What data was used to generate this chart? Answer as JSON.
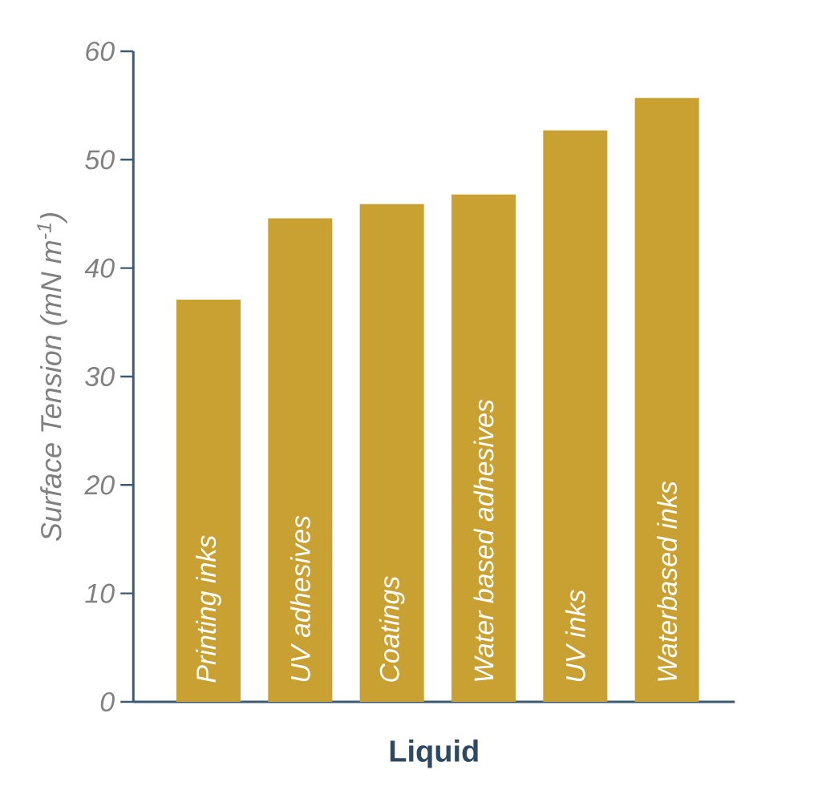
{
  "chart_data": {
    "type": "bar",
    "xlabel": "Liquid",
    "ylabel": "Surface Tension (mN m$^{-1}$)",
    "categories": [
      "Printing inks",
      "UV adhesives",
      "Coatings",
      "Water based adhesives",
      "UV inks",
      "Waterbased inks"
    ],
    "values": [
      37.1,
      44.6,
      45.9,
      46.8,
      52.7,
      55.7
    ],
    "color": "#c9a032",
    "ylim": [
      0,
      60
    ],
    "yticks": [
      0,
      10,
      20,
      30,
      40,
      50,
      60
    ]
  }
}
